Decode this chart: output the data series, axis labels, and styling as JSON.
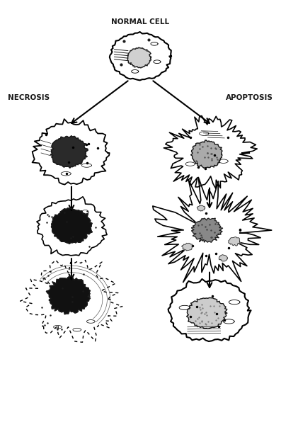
{
  "title": "NORMAL CELL",
  "label_left": "NECROSIS",
  "label_right": "APOPTOSIS",
  "bg_color": "#ffffff",
  "ink_color": "#1a1a1a",
  "fig_width": 3.97,
  "fig_height": 6.27,
  "dpi": 100
}
